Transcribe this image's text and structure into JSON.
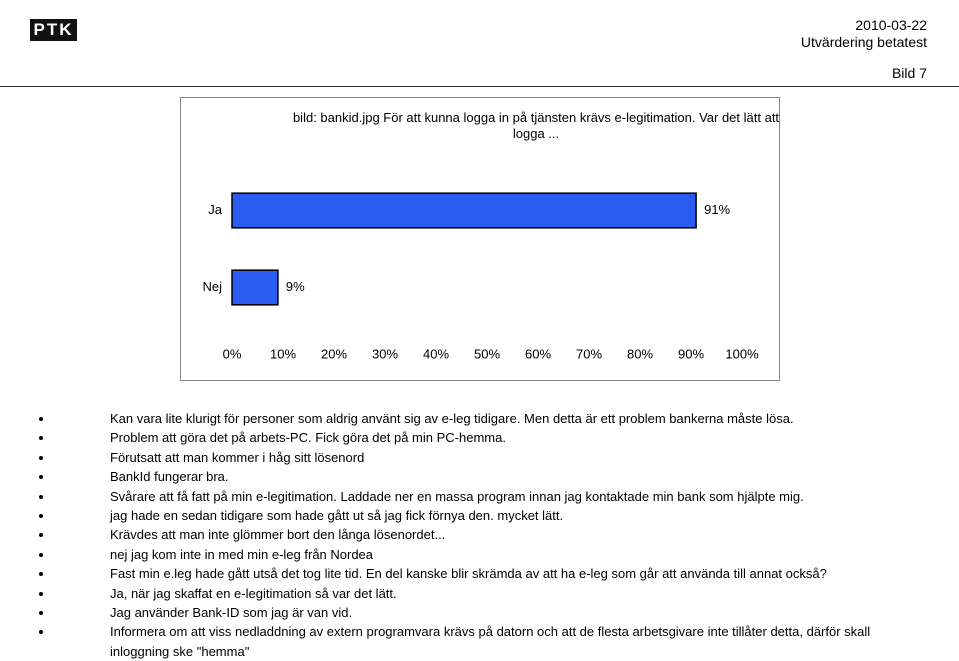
{
  "header": {
    "logo": "PTK",
    "date": "2010-03-22",
    "subtitle": "Utvärdering betatest",
    "slide": "Bild 7"
  },
  "chart_data": {
    "type": "bar",
    "orientation": "horizontal",
    "title": "bild: bankid.jpg    För att kunna logga in på tjänsten krävs e-legitimation. Var det lätt att logga ...",
    "categories": [
      "Ja",
      "Nej"
    ],
    "values": [
      91,
      9
    ],
    "value_labels": [
      "91%",
      "9%"
    ],
    "color": "#2b5cf2",
    "grid": false,
    "xlim": [
      0,
      100
    ],
    "xticks": [
      {
        "value": 0,
        "label": "0%"
      },
      {
        "value": 10,
        "label": "10%"
      },
      {
        "value": 20,
        "label": "20%"
      },
      {
        "value": 30,
        "label": "30%"
      },
      {
        "value": 40,
        "label": "40%"
      },
      {
        "value": 50,
        "label": "50%"
      },
      {
        "value": 60,
        "label": "60%"
      },
      {
        "value": 70,
        "label": "70%"
      },
      {
        "value": 80,
        "label": "80%"
      },
      {
        "value": 90,
        "label": "90%"
      },
      {
        "value": 100,
        "label": "100%"
      }
    ]
  },
  "comments": [
    "Kan vara lite klurigt för personer som aldrig använt sig av e-leg tidigare. Men detta är ett problem bankerna måste lösa.",
    "Problem att göra det på arbets-PC. Fick göra det på min PC-hemma.",
    "Förutsatt att man kommer i håg sitt lösenord",
    "BankId fungerar bra.",
    "Svårare att få fatt på min e-legitimation. Laddade ner en massa program innan jag kontaktade min bank som hjälpte mig.",
    "jag hade en sedan tidigare som hade gått ut så jag fick förnya den. mycket lätt.",
    "Krävdes att man inte glömmer bort den långa lösenordet...",
    "nej jag kom inte  in med min e-leg från Nordea",
    "Fast min e.leg hade gått utså det tog lite tid. En del kanske blir skrämda av att ha e-leg som går att använda till annat också?",
    "Ja, när jag skaffat en e-legitimation så var det lätt.",
    "Jag använder Bank-ID som jag är van vid.",
    "Informera om att viss nedladdning av extern programvara krävs på datorn och att de flesta arbetsgivare inte tillåter detta, därför skall inloggning ske \"hemma\""
  ]
}
